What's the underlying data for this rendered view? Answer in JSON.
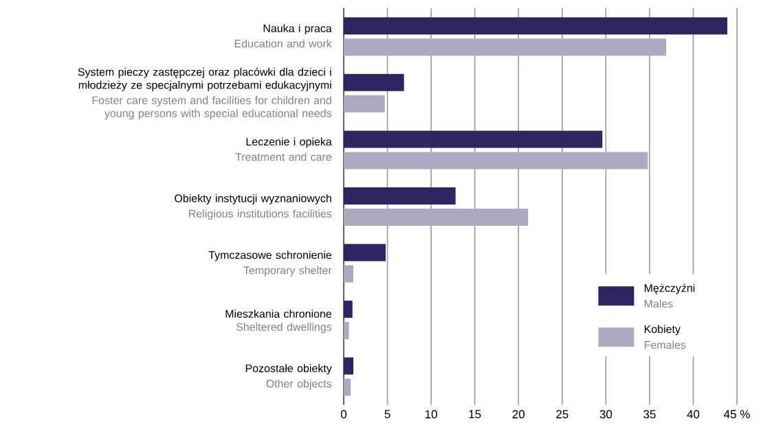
{
  "chart_data": {
    "type": "bar",
    "orientation": "horizontal",
    "categories": [
      "Nauka i praca",
      "System pieczy zastępczej oraz placówki dla dzieci i młodzieży ze specjalnymi potrzebami edukacyjnymi",
      "Leczenie i opieka",
      "Obiekty instytucji wyznaniowych",
      "Tymczasowe schronienie",
      "Mieszkania chronione",
      "Pozostałe obiekty"
    ],
    "series": [
      {
        "name": "Mężczyźni",
        "color": "#2d2660",
        "values": [
          43.9,
          6.9,
          29.6,
          12.8,
          4.8,
          1.0,
          1.1
        ]
      },
      {
        "name": "Kobiety",
        "color": "#acaac1",
        "values": [
          36.9,
          4.7,
          34.8,
          21.1,
          1.1,
          0.6,
          0.8
        ]
      }
    ],
    "annotations": [
      "Education and work",
      "Foster care system and facilities for children and young persons with special educational needs",
      "Treatment and care",
      "Religious institutions facilities",
      "Temporary shelter",
      "Sheltered dwellings",
      "Other objects",
      "Males",
      "Females"
    ],
    "xlim": [
      0,
      45
    ],
    "xticks": [
      0,
      5,
      10,
      15,
      20,
      25,
      30,
      35,
      40,
      {
        "value": 45,
        "label": "45 %"
      }
    ],
    "grid": "x",
    "legend": "bottom right"
  }
}
